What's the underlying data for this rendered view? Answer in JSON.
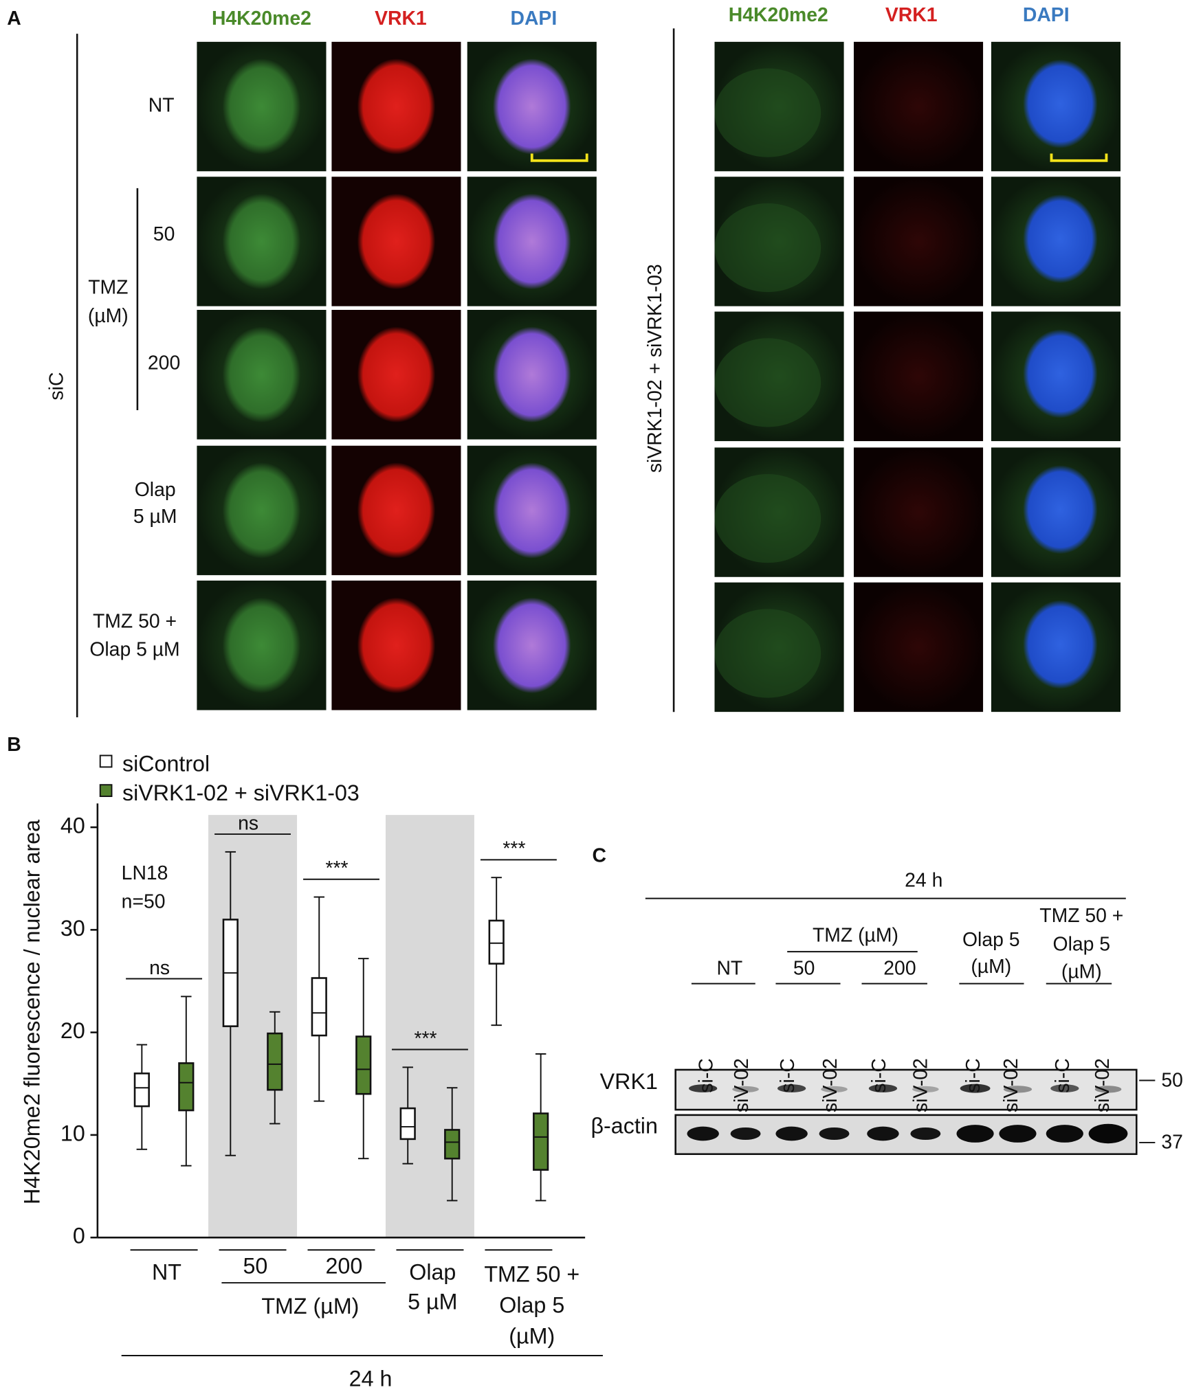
{
  "panel_a": {
    "label": "A",
    "columns": [
      "H4K20me2",
      "VRK1",
      "DAPI"
    ],
    "left_group": "siC",
    "right_group": "siVRK1-02 + siVRK1-03",
    "treatments": [
      [
        "NT"
      ],
      [
        "50"
      ],
      [
        "200"
      ],
      [
        "Olap",
        "5 µM"
      ],
      [
        "TMZ 50 +",
        "Olap 5 µM"
      ]
    ],
    "tmz_label": [
      "TMZ",
      "(µM)"
    ]
  },
  "chart_data": {
    "type": "box",
    "panel_label": "B",
    "y_label": "H4K20me2 fluorescence / nuclear area",
    "annotations": [
      "LN18",
      "n=50"
    ],
    "categories": [
      [
        "NT"
      ],
      [
        "50"
      ],
      [
        "200"
      ],
      [
        "Olap",
        "5 µM"
      ],
      [
        "TMZ 50 +",
        "Olap 5",
        "(µM)"
      ]
    ],
    "x_group_label": "TMZ (µM)",
    "footer": "24 h",
    "shaded_categories": [
      1,
      3
    ],
    "shade_color": "#d9d9d9",
    "significance": [
      "ns",
      "ns",
      "***",
      "***",
      "***"
    ],
    "series": [
      {
        "name": "siControl",
        "color": "#ffffff",
        "min": [
          8.6,
          8.0,
          13.3,
          7.2,
          20.7
        ],
        "q1": [
          12.8,
          20.6,
          19.7,
          9.6,
          26.7
        ],
        "median": [
          14.6,
          25.8,
          21.9,
          10.8,
          28.7
        ],
        "q3": [
          16.0,
          31.0,
          25.3,
          12.6,
          30.9
        ],
        "max": [
          18.8,
          37.6,
          33.2,
          16.6,
          35.1
        ]
      },
      {
        "name": "siVRK1-02 + siVRK1-03",
        "color": "#54822f",
        "min": [
          7.0,
          11.1,
          7.7,
          3.6,
          3.6
        ],
        "q1": [
          12.4,
          14.4,
          14.0,
          7.7,
          6.6
        ],
        "median": [
          15.1,
          16.9,
          16.4,
          9.3,
          9.8
        ],
        "q3": [
          17.0,
          19.9,
          19.6,
          10.5,
          12.1
        ],
        "max": [
          23.5,
          22.0,
          27.2,
          14.6,
          17.9
        ]
      }
    ],
    "ylim": [
      0,
      41.2
    ],
    "yticks": [
      0,
      10,
      20,
      30,
      40
    ]
  },
  "panel_c": {
    "label": "C",
    "time": "24 h",
    "tmz_label": "TMZ (µM)",
    "groups": [
      [
        "NT"
      ],
      [
        "50"
      ],
      [
        "200"
      ],
      [
        "Olap 5",
        "(µM)"
      ],
      [
        "TMZ 50 +",
        "Olap 5",
        "(µM)"
      ]
    ],
    "lanes": [
      "si-C",
      "siV-02",
      "si-C",
      "siV-02",
      "si-C",
      "siV-02",
      "si-C",
      "siV-02",
      "si-C",
      "siV-02"
    ],
    "rows": [
      "VRK1",
      "β-actin"
    ],
    "markers": [
      "50",
      "37"
    ]
  }
}
